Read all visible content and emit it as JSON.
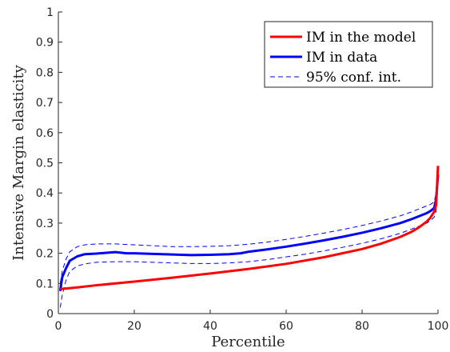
{
  "chart_data": {
    "type": "line",
    "xlabel": "Percentile",
    "ylabel": "Intensive Margin elasticity",
    "xlim": [
      0,
      100
    ],
    "ylim": [
      0,
      1
    ],
    "xticks": [
      "0",
      "20",
      "40",
      "60",
      "80",
      "100"
    ],
    "yticks": [
      "0",
      "0.1",
      "0.2",
      "0.3",
      "0.4",
      "0.5",
      "0.6",
      "0.7",
      "0.8",
      "0.9",
      "1"
    ],
    "grid": false,
    "legend_position": "top-right",
    "series": [
      {
        "name": "IM in the model",
        "color": "#ff0000",
        "style": "solid",
        "x": [
          0.5,
          1,
          5,
          10,
          20,
          30,
          40,
          50,
          60,
          70,
          80,
          85,
          90,
          93,
          95,
          97,
          98,
          99,
          99.5,
          100
        ],
        "y": [
          0.08,
          0.082,
          0.087,
          0.094,
          0.106,
          0.119,
          0.133,
          0.148,
          0.165,
          0.187,
          0.214,
          0.232,
          0.254,
          0.271,
          0.286,
          0.305,
          0.318,
          0.338,
          0.36,
          0.49
        ]
      },
      {
        "name": "IM in data",
        "color": "#0000ff",
        "style": "solid",
        "x": [
          0.5,
          1,
          2,
          3,
          5,
          7,
          10,
          13,
          15,
          18,
          20,
          25,
          30,
          35,
          40,
          45,
          48,
          50,
          55,
          60,
          65,
          70,
          75,
          80,
          85,
          90,
          93,
          95,
          97,
          98,
          99,
          99.5,
          100
        ],
        "y": [
          0.075,
          0.12,
          0.15,
          0.175,
          0.19,
          0.197,
          0.199,
          0.202,
          0.204,
          0.2,
          0.2,
          0.198,
          0.196,
          0.194,
          0.195,
          0.197,
          0.2,
          0.205,
          0.213,
          0.222,
          0.232,
          0.243,
          0.255,
          0.268,
          0.283,
          0.3,
          0.313,
          0.323,
          0.333,
          0.34,
          0.35,
          0.38,
          0.46
        ]
      },
      {
        "name": "95% conf. int.",
        "color": "#0000ff",
        "style": "dashed",
        "x": [
          0.5,
          1,
          2,
          3,
          5,
          7,
          10,
          15,
          20,
          25,
          30,
          35,
          40,
          45,
          50,
          55,
          60,
          65,
          70,
          75,
          80,
          85,
          90,
          93,
          95,
          97,
          98,
          99,
          99.5,
          100
        ],
        "y": [
          0.1,
          0.14,
          0.18,
          0.205,
          0.222,
          0.228,
          0.231,
          0.231,
          0.228,
          0.225,
          0.222,
          0.222,
          0.223,
          0.225,
          0.23,
          0.237,
          0.246,
          0.256,
          0.267,
          0.279,
          0.292,
          0.307,
          0.324,
          0.337,
          0.347,
          0.357,
          0.362,
          0.37,
          0.4,
          0.47
        ]
      },
      {
        "name": "",
        "color": "#0000ff",
        "style": "dashed",
        "x": [
          0.5,
          1,
          2,
          3,
          5,
          7,
          10,
          15,
          20,
          25,
          30,
          35,
          40,
          45,
          50,
          55,
          60,
          65,
          70,
          75,
          80,
          85,
          90,
          93,
          95,
          97,
          98,
          99,
          99.5,
          100
        ],
        "y": [
          0.02,
          0.06,
          0.11,
          0.14,
          0.158,
          0.165,
          0.17,
          0.172,
          0.172,
          0.17,
          0.168,
          0.166,
          0.166,
          0.168,
          0.172,
          0.179,
          0.188,
          0.197,
          0.208,
          0.22,
          0.233,
          0.248,
          0.266,
          0.28,
          0.29,
          0.3,
          0.308,
          0.32,
          0.34,
          0.44
        ]
      }
    ]
  }
}
